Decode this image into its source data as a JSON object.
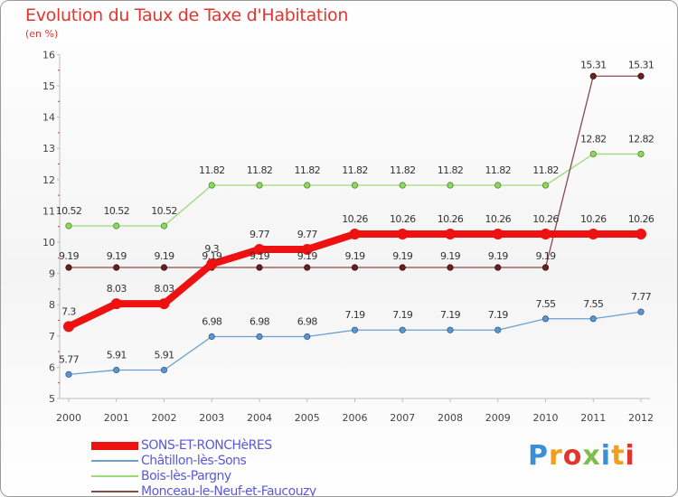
{
  "title": "Evolution du Taux de Taxe d'Habitation",
  "subtitle": "(en %)",
  "watermark": "Proxiti",
  "chart_data": {
    "type": "line",
    "title": "Evolution du Taux de Taxe d'Habitation",
    "ylabel": "(en %)",
    "xlabel": "",
    "x": [
      "2000",
      "2001",
      "2002",
      "2003",
      "2004",
      "2005",
      "2006",
      "2007",
      "2008",
      "2009",
      "2010",
      "2011",
      "2012"
    ],
    "ylim": [
      5,
      16
    ],
    "yticks": [
      "5",
      "6",
      "7",
      "8",
      "9",
      "10",
      "11",
      "12",
      "13",
      "14",
      "15",
      "16"
    ],
    "grid": false,
    "legend_position": "bottom-left",
    "series": [
      {
        "name": "SONS-ET-RONCHèRES",
        "color": "#ee1111",
        "values": [
          7.3,
          8.03,
          8.03,
          9.3,
          9.77,
          9.77,
          10.26,
          10.26,
          10.26,
          10.26,
          10.26,
          10.26,
          10.26
        ],
        "labels": [
          "7.3",
          "8.03",
          "8.03",
          "9.3",
          "9.77",
          "9.77",
          "10.26",
          "10.26",
          "10.26",
          "10.26",
          "10.26",
          "10.26",
          "10.26"
        ]
      },
      {
        "name": "Châtillon-lès-Sons",
        "color": "#6b9fd0",
        "values": [
          5.77,
          5.91,
          5.91,
          6.98,
          6.98,
          6.98,
          7.19,
          7.19,
          7.19,
          7.19,
          7.55,
          7.55,
          7.77
        ],
        "labels": [
          "5.77",
          "5.91",
          "5.91",
          "6.98",
          "6.98",
          "6.98",
          "7.19",
          "7.19",
          "7.19",
          "7.19",
          "7.55",
          "7.55",
          "7.77"
        ]
      },
      {
        "name": "Bois-lès-Pargny",
        "color": "#9ed978",
        "values": [
          10.52,
          10.52,
          10.52,
          11.82,
          11.82,
          11.82,
          11.82,
          11.82,
          11.82,
          11.82,
          11.82,
          12.82,
          12.82
        ],
        "labels": [
          "10.52",
          "10.52",
          "10.52",
          "11.82",
          "11.82",
          "11.82",
          "11.82",
          "11.82",
          "11.82",
          "11.82",
          "11.82",
          "12.82",
          "12.82"
        ]
      },
      {
        "name": "Monceau-le-Neuf-et-Faucouzy",
        "color": "#8b4a4a",
        "values": [
          9.19,
          9.19,
          9.19,
          9.19,
          9.19,
          9.19,
          9.19,
          9.19,
          9.19,
          9.19,
          9.19,
          15.31,
          15.31
        ],
        "labels": [
          "9.19",
          "9.19",
          "9.19",
          "9.19",
          "9.19",
          "9.19",
          "9.19",
          "9.19",
          "9.19",
          "9.19",
          "9.19",
          "15.31",
          "15.31"
        ]
      }
    ]
  }
}
